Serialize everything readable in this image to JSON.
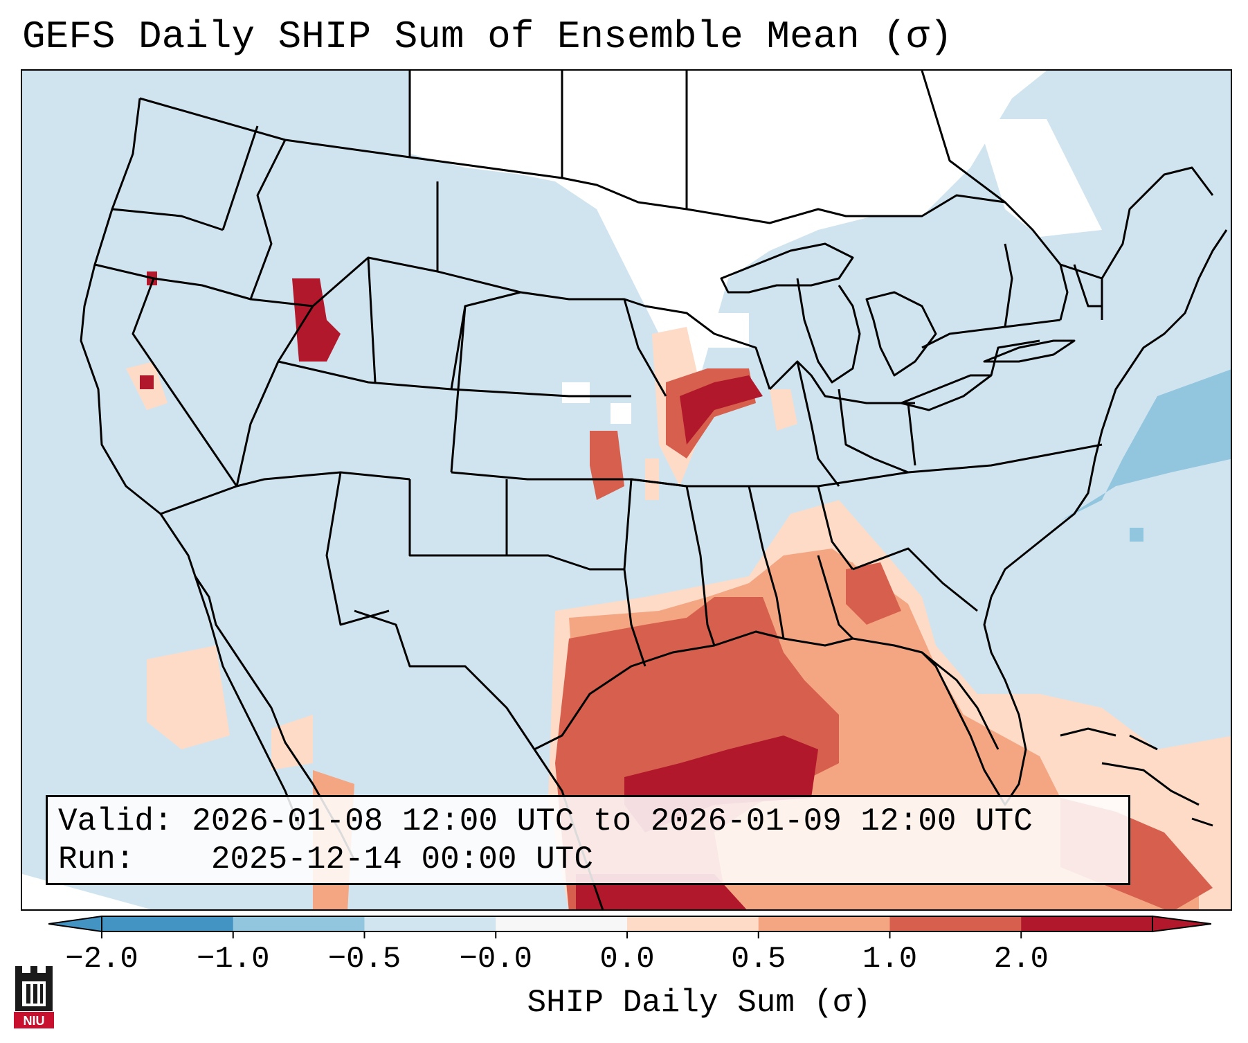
{
  "title": "GEFS Daily SHIP Sum of Ensemble Mean (σ)",
  "info": {
    "valid_label": "Valid:",
    "valid_value": "2026-01-08 12:00 UTC to 2026-01-09 12:00 UTC",
    "run_label": "Run:",
    "run_value": "2025-12-14 00:00 UTC"
  },
  "colorbar": {
    "label": "SHIP Daily Sum (σ)",
    "ticks": [
      "−2.0",
      "−1.0",
      "−0.5",
      "−0.0",
      "0.0",
      "0.5",
      "1.0",
      "2.0"
    ],
    "colors": [
      "#4393c3",
      "#92c5de",
      "#d1e5f0",
      "#f7f7f7",
      "#fddbc7",
      "#f4a582",
      "#d6604d",
      "#b2182b"
    ]
  },
  "logo": {
    "text": "NIU"
  },
  "map": {
    "variable": "SHIP",
    "region": "CONUS",
    "colors": {
      "background": "#d1e5f0",
      "neutral": "#ffffff",
      "light_pink": "#fddbc7",
      "salmon": "#f4a582",
      "red": "#d6604d",
      "dark_red": "#b2182b",
      "blue": "#92c5de",
      "border": "#000000"
    }
  }
}
